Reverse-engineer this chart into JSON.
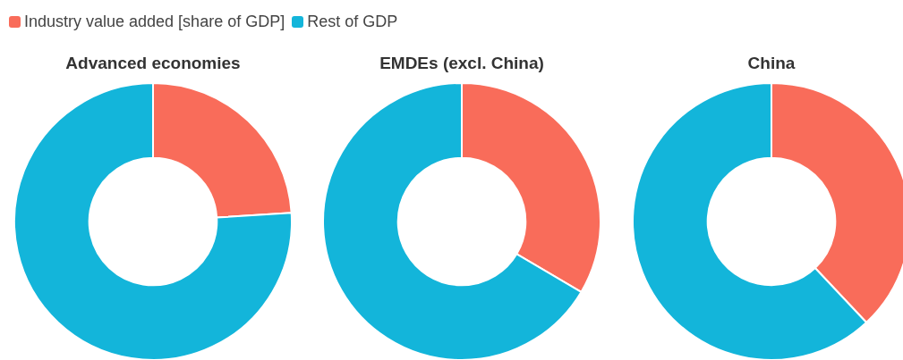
{
  "chart_data": [
    {
      "type": "donut",
      "title": "Advanced economies",
      "categories": [
        "Industry value added [share of GDP]",
        "Rest of GDP"
      ],
      "values": [
        24,
        76
      ],
      "colors": [
        "#f96c5a",
        "#13b5da"
      ],
      "legend": "top"
    },
    {
      "type": "donut",
      "title": "EMDEs (excl. China)",
      "values": [
        33.5,
        66.5
      ],
      "colors": [
        "#f96c5a",
        "#13b5da"
      ]
    },
    {
      "type": "donut",
      "title": "China",
      "values": [
        38,
        62
      ],
      "colors": [
        "#f96c5a",
        "#13b5da"
      ]
    }
  ]
}
